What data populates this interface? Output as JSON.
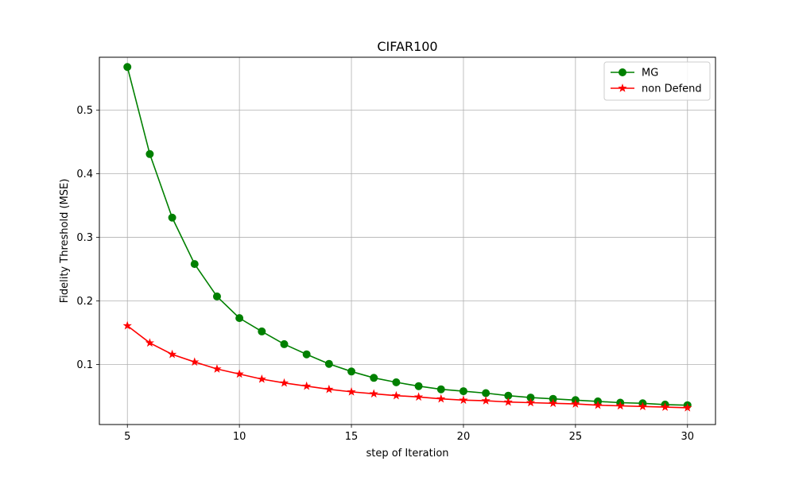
{
  "chart_data": {
    "type": "line",
    "title": "CIFAR100",
    "xlabel": "step of Iteration",
    "ylabel": "Fidelity Threshold (MSE)",
    "xlim": [
      3.75,
      31.25
    ],
    "ylim": [
      0.0056,
      0.5833
    ],
    "xticks": [
      5,
      10,
      15,
      20,
      25,
      30
    ],
    "yticks": [
      0.1,
      0.2,
      0.3,
      0.4,
      0.5
    ],
    "grid": true,
    "legend": "top-right",
    "x": [
      5,
      6,
      7,
      8,
      9,
      10,
      11,
      12,
      13,
      14,
      15,
      16,
      17,
      18,
      19,
      20,
      21,
      22,
      23,
      24,
      25,
      26,
      27,
      28,
      29,
      30
    ],
    "series": [
      {
        "name": "MG",
        "color": "#008000",
        "marker": "circle",
        "values": [
          0.568,
          0.431,
          0.331,
          0.258,
          0.207,
          0.173,
          0.152,
          0.132,
          0.116,
          0.101,
          0.089,
          0.079,
          0.072,
          0.066,
          0.061,
          0.058,
          0.055,
          0.051,
          0.048,
          0.046,
          0.044,
          0.042,
          0.04,
          0.039,
          0.037,
          0.036
        ]
      },
      {
        "name": "non Defend",
        "color": "#ff0000",
        "marker": "star",
        "values": [
          0.161,
          0.134,
          0.116,
          0.104,
          0.093,
          0.085,
          0.077,
          0.071,
          0.066,
          0.061,
          0.057,
          0.054,
          0.051,
          0.049,
          0.046,
          0.044,
          0.043,
          0.041,
          0.04,
          0.039,
          0.038,
          0.036,
          0.035,
          0.034,
          0.033,
          0.032
        ]
      }
    ]
  }
}
